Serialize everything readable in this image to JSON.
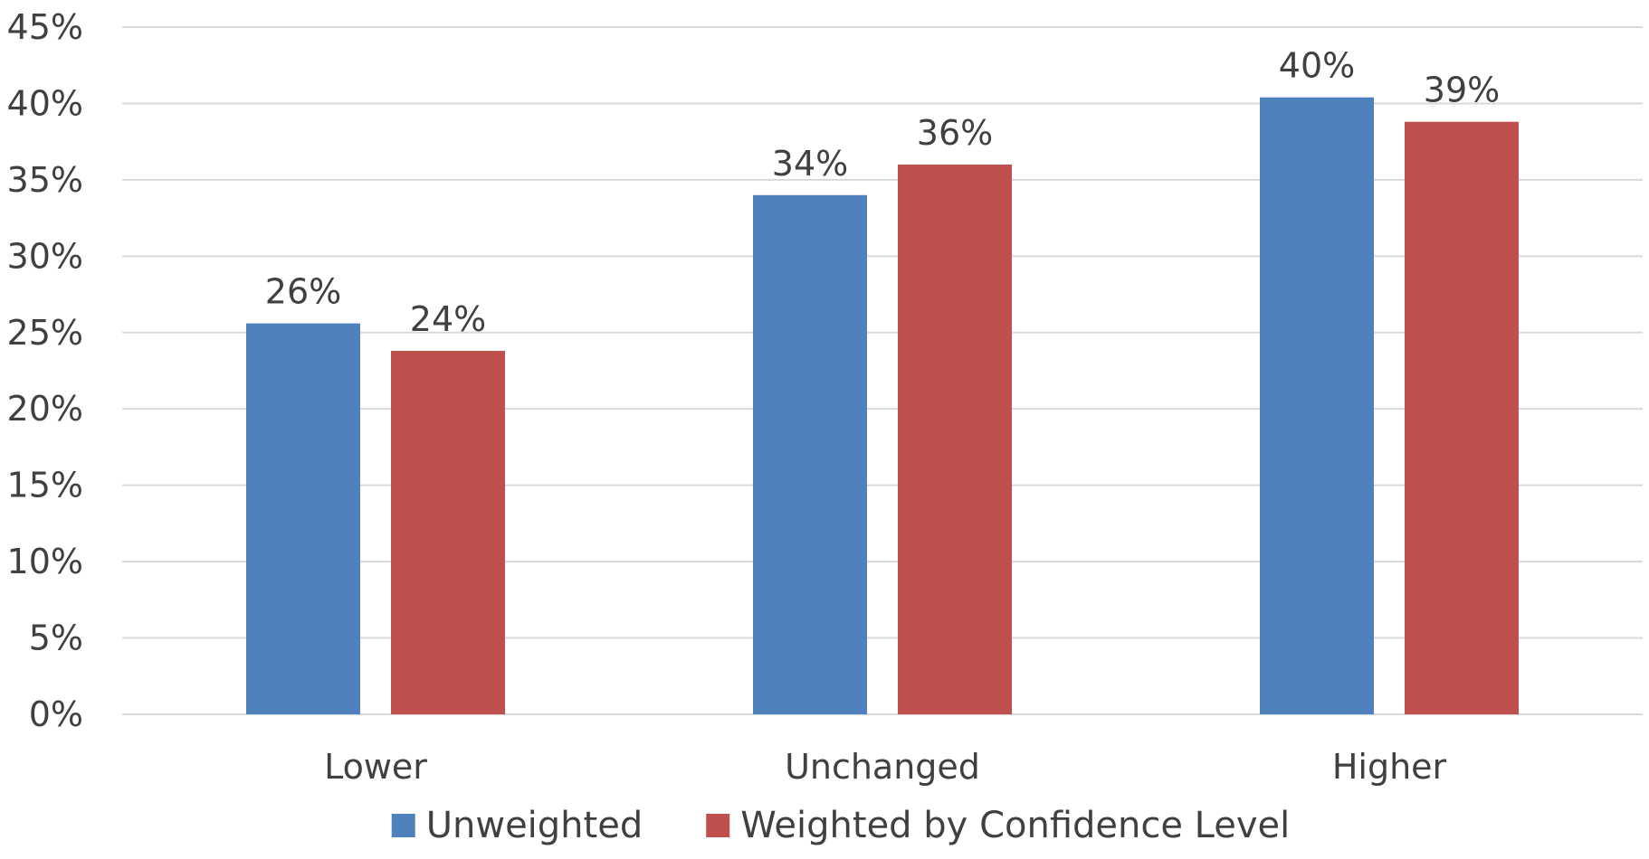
{
  "chart_data": {
    "type": "bar",
    "categories": [
      "Lower",
      "Unchanged",
      "Higher"
    ],
    "series": [
      {
        "name": "Unweighted",
        "values": [
          25.6,
          34.0,
          40.4
        ],
        "labels": [
          "26%",
          "34%",
          "40%"
        ],
        "color": "#4f81bd"
      },
      {
        "name": "Weighted by Confidence Level",
        "values": [
          23.8,
          36.0,
          38.8
        ],
        "labels": [
          "24%",
          "36%",
          "39%"
        ],
        "color": "#c0504d"
      }
    ],
    "yticks": [
      {
        "value": 0,
        "label": "0%"
      },
      {
        "value": 5,
        "label": "5%"
      },
      {
        "value": 10,
        "label": "10%"
      },
      {
        "value": 15,
        "label": "15%"
      },
      {
        "value": 20,
        "label": "20%"
      },
      {
        "value": 25,
        "label": "25%"
      },
      {
        "value": 30,
        "label": "30%"
      },
      {
        "value": 35,
        "label": "35%"
      },
      {
        "value": 40,
        "label": "40%"
      },
      {
        "value": 45,
        "label": "45%"
      }
    ],
    "ylim": [
      0,
      45
    ],
    "grid": true,
    "gridColor": "#d9d9d9",
    "legend": "bottom",
    "title": "",
    "xlabel": "",
    "ylabel": ""
  }
}
